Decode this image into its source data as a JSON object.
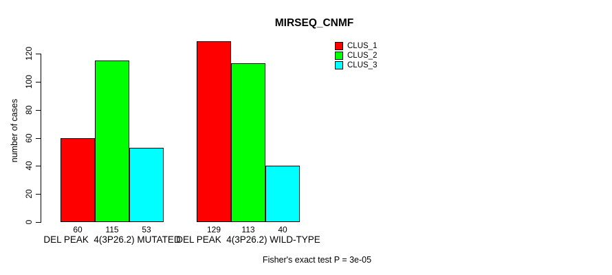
{
  "chart_data": {
    "type": "bar",
    "grouped": true,
    "title": "MIRSEQ_CNMF",
    "xlabel": "",
    "ylabel": "number of cases",
    "annotation": "Fisher's exact test P = 3e-05",
    "categories": [
      "DEL PEAK  4(3P26.2) MUTATED",
      "DEL PEAK  4(3P26.2) WILD-TYPE"
    ],
    "series": [
      {
        "name": "CLUS_1",
        "color": "#ff0000",
        "values": [
          60,
          129
        ]
      },
      {
        "name": "CLUS_2",
        "color": "#00ff00",
        "values": [
          115,
          113
        ]
      },
      {
        "name": "CLUS_3",
        "color": "#00ffff",
        "values": [
          53,
          40
        ]
      }
    ],
    "bar_value_labels": [
      [
        "60",
        "115",
        "53"
      ],
      [
        "129",
        "113",
        "40"
      ]
    ],
    "yticks": [
      0,
      20,
      40,
      60,
      80,
      100,
      120
    ],
    "ylim": [
      0,
      129
    ],
    "grid": false,
    "legend_position": "top-right",
    "colors": {
      "background": "#ffffff",
      "axis": "#000000",
      "text": "#000000"
    }
  }
}
